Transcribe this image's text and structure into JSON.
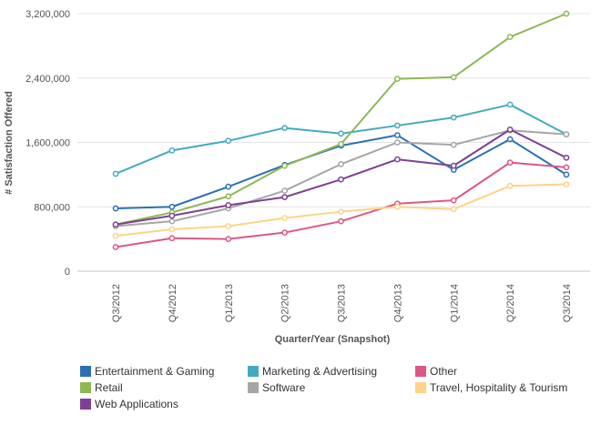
{
  "chart_data": {
    "type": "line",
    "title": "",
    "xlabel": "Quarter/Year (Snapshot)",
    "ylabel": "# Satisfaction Offered",
    "ylim": [
      0,
      3200000
    ],
    "yticks": [
      0,
      800000,
      1600000,
      2400000,
      3200000
    ],
    "ytick_labels": [
      "0",
      "800,000",
      "1,600,000",
      "2,400,000",
      "3,200,000"
    ],
    "grid": true,
    "legend_position": "bottom",
    "categories": [
      "Q3/2012",
      "Q4/2012",
      "Q1/2013",
      "Q2/2013",
      "Q3/2013",
      "Q4/2013",
      "Q1/2014",
      "Q2/2014",
      "Q3/2014"
    ],
    "series": [
      {
        "name": "Entertainment & Gaming",
        "color": "#2c6fb4",
        "values": [
          780000,
          800000,
          1050000,
          1320000,
          1560000,
          1690000,
          1260000,
          1640000,
          1200000
        ]
      },
      {
        "name": "Marketing & Advertising",
        "color": "#45a9bf",
        "values": [
          1210000,
          1500000,
          1620000,
          1780000,
          1710000,
          1810000,
          1910000,
          2070000,
          1700000
        ]
      },
      {
        "name": "Other",
        "color": "#dc5884",
        "values": [
          300000,
          410000,
          400000,
          480000,
          620000,
          840000,
          880000,
          1350000,
          1290000
        ]
      },
      {
        "name": "Retail",
        "color": "#8db856",
        "values": [
          580000,
          730000,
          930000,
          1310000,
          1580000,
          2390000,
          2410000,
          2910000,
          3200000
        ]
      },
      {
        "name": "Software",
        "color": "#a6a6a6",
        "values": [
          560000,
          620000,
          780000,
          1000000,
          1330000,
          1600000,
          1570000,
          1750000,
          1700000
        ]
      },
      {
        "name": "Travel, Hospitality & Tourism",
        "color": "#fdd387",
        "values": [
          440000,
          520000,
          560000,
          660000,
          740000,
          800000,
          770000,
          1060000,
          1080000
        ]
      },
      {
        "name": "Web Applications",
        "color": "#7d4194",
        "values": [
          580000,
          690000,
          820000,
          920000,
          1140000,
          1390000,
          1310000,
          1760000,
          1410000
        ]
      }
    ]
  }
}
